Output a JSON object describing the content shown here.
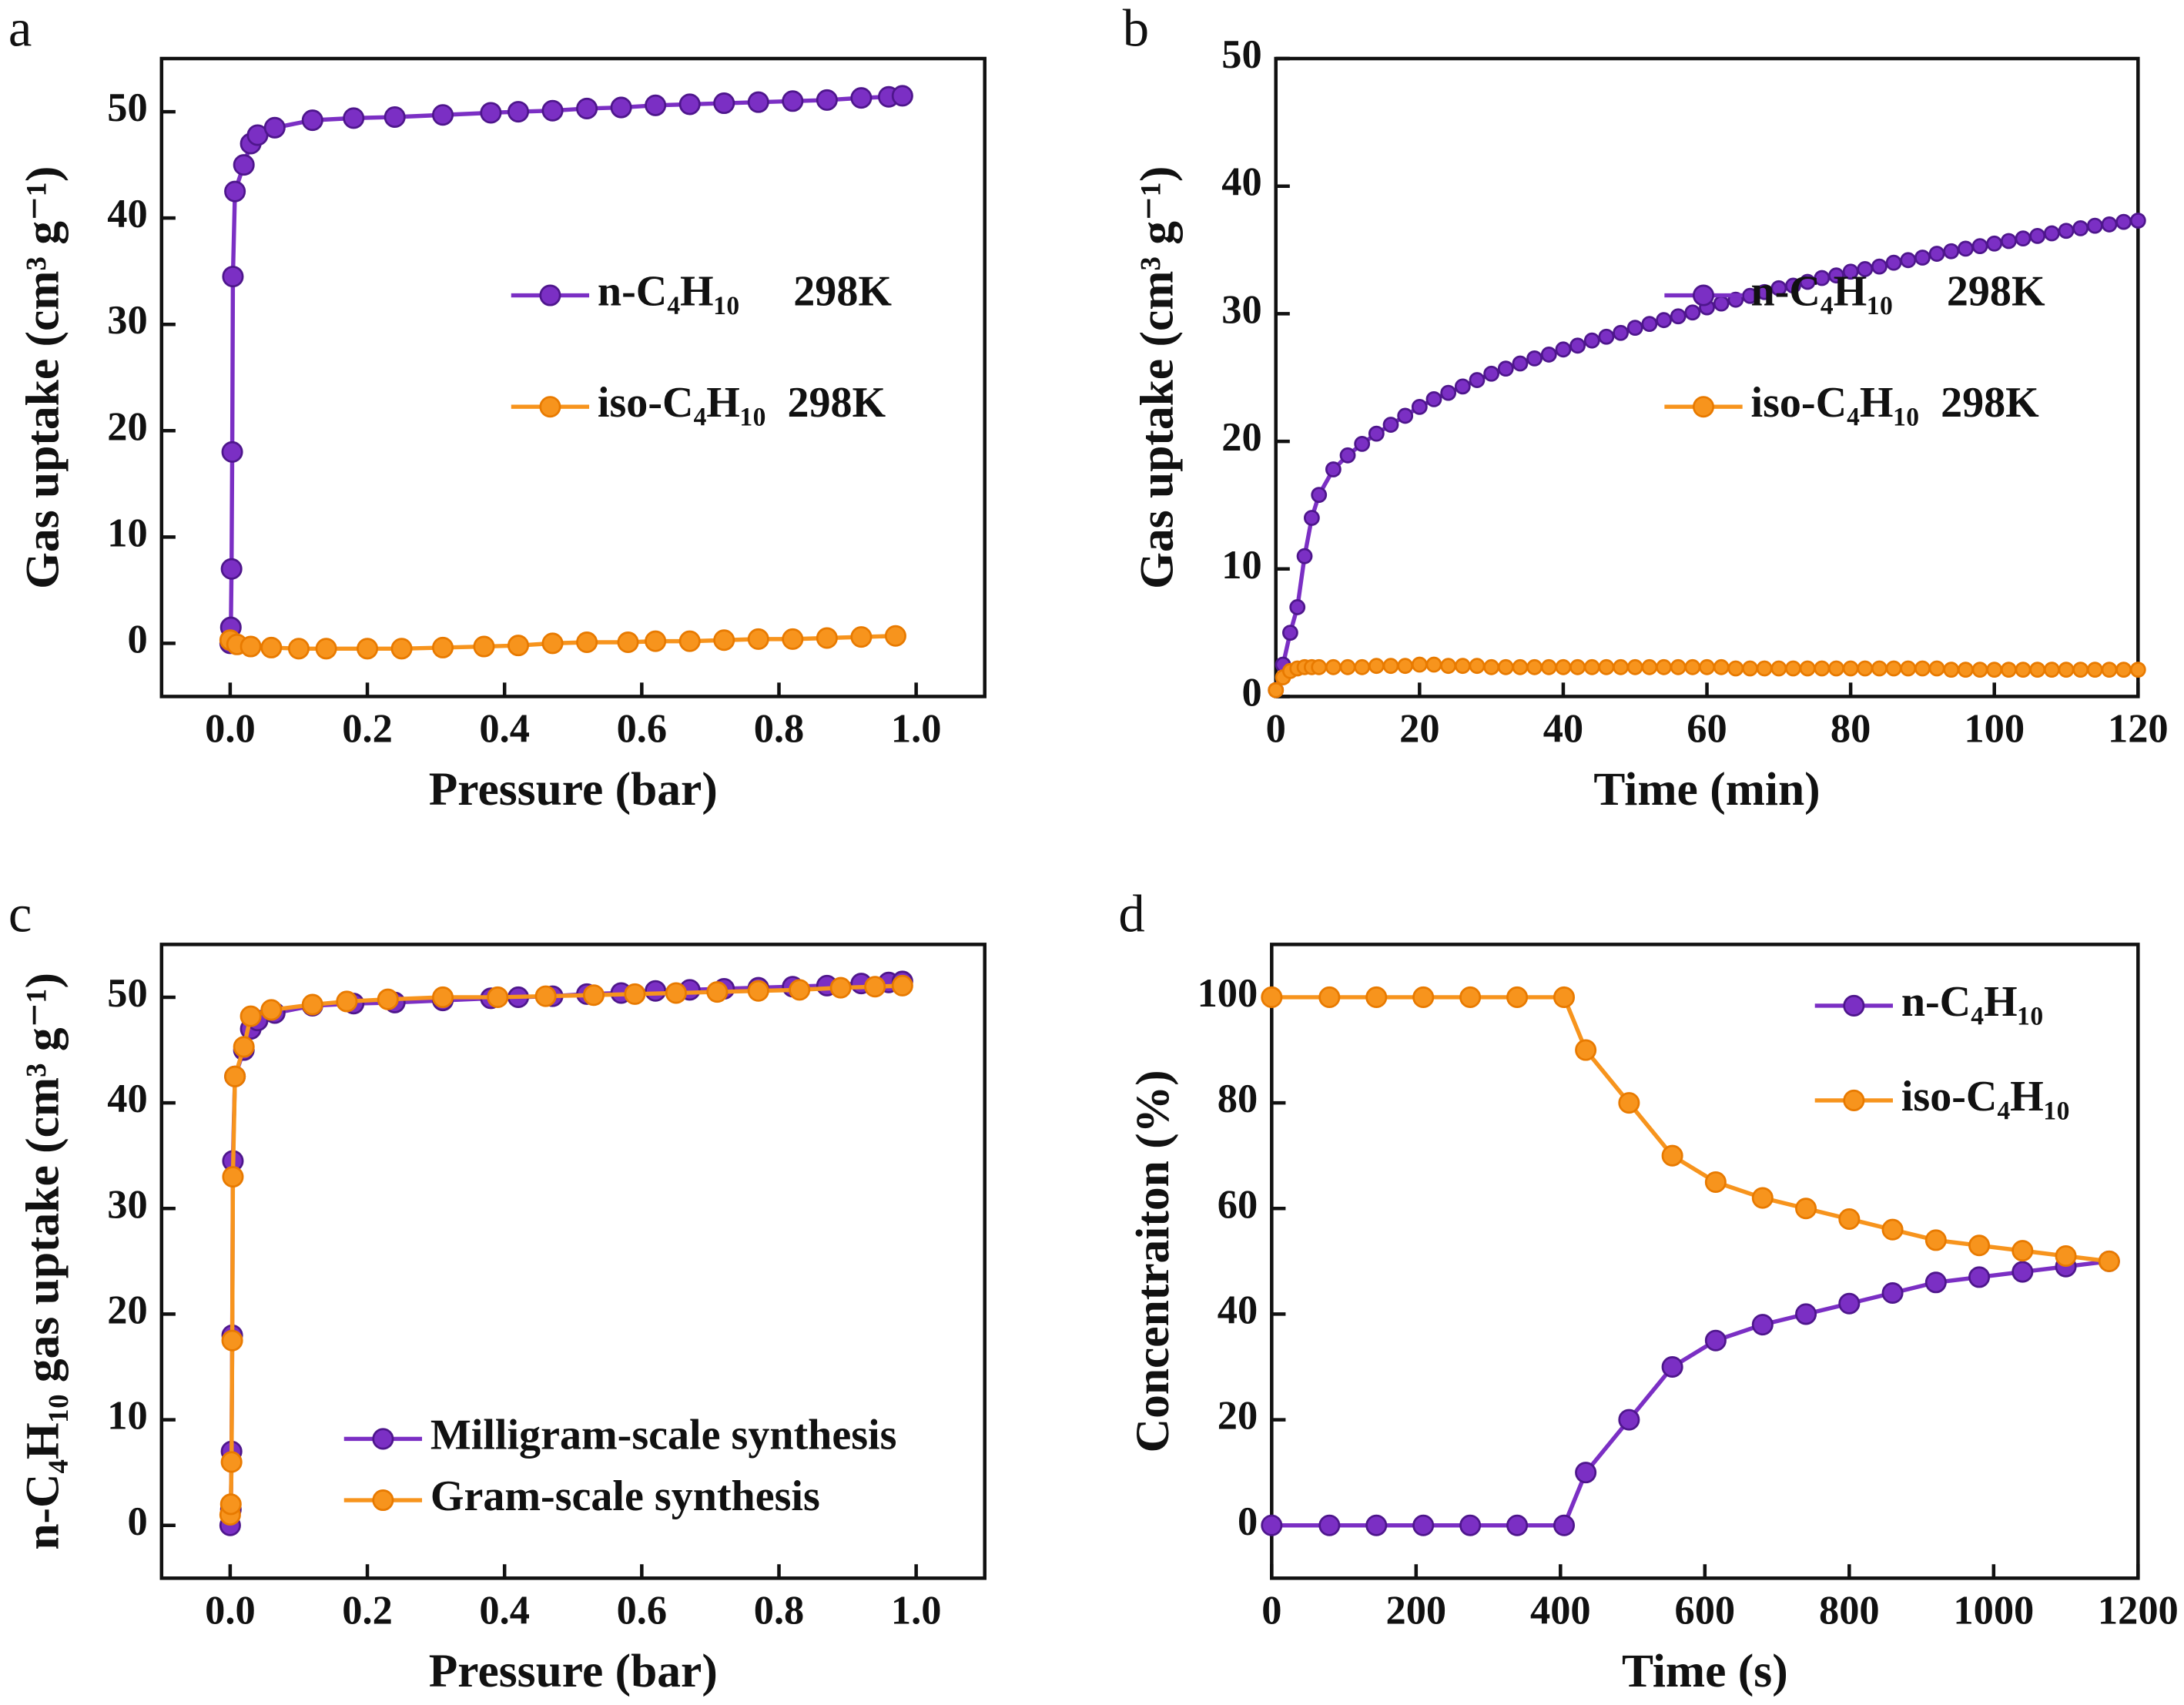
{
  "chart_data": [
    {
      "type": "line",
      "panel": "a",
      "xlabel": "Pressure (bar)",
      "ylabel": "Gas uptake (cm³ g⁻¹)",
      "xlim": [
        -0.1,
        1.1
      ],
      "ylim": [
        -5,
        55
      ],
      "xticks": [
        {
          "value": 0,
          "label": "0.0"
        },
        0.2,
        0.4,
        0.6,
        0.8,
        {
          "value": 1,
          "label": "1.0"
        }
      ],
      "yticks": [
        0,
        10,
        20,
        30,
        40,
        50
      ],
      "legend": "center right",
      "series": [
        {
          "name": "n-C₄H₁₀     298K",
          "color": "#7b2fc4",
          "x": [
            0,
            0.001,
            0.002,
            0.003,
            0.004,
            0.007,
            0.02,
            0.03,
            0.04,
            0.065,
            0.12,
            0.18,
            0.24,
            0.31,
            0.38,
            0.42,
            0.47,
            0.52,
            0.57,
            0.62,
            0.67,
            0.72,
            0.77,
            0.82,
            0.87,
            0.92,
            0.96,
            0.98
          ],
          "values": [
            0,
            1.5,
            7,
            18,
            34.5,
            42.5,
            45,
            47,
            47.8,
            48.5,
            49.2,
            49.4,
            49.5,
            49.7,
            49.9,
            50,
            50.1,
            50.3,
            50.4,
            50.6,
            50.7,
            50.8,
            50.9,
            51,
            51.1,
            51.3,
            51.4,
            51.5
          ]
        },
        {
          "name": "iso-C₄H₁₀  298K",
          "color": "#f7941d",
          "x": [
            0,
            0.01,
            0.03,
            0.06,
            0.1,
            0.14,
            0.2,
            0.25,
            0.31,
            0.37,
            0.42,
            0.47,
            0.52,
            0.58,
            0.62,
            0.67,
            0.72,
            0.77,
            0.82,
            0.87,
            0.92,
            0.97
          ],
          "values": [
            0.3,
            -0.1,
            -0.3,
            -0.4,
            -0.5,
            -0.5,
            -0.5,
            -0.5,
            -0.4,
            -0.3,
            -0.2,
            0,
            0.1,
            0.1,
            0.2,
            0.2,
            0.3,
            0.4,
            0.4,
            0.5,
            0.6,
            0.7
          ]
        }
      ]
    },
    {
      "type": "line",
      "panel": "b",
      "xlabel": "Time (min)",
      "ylabel": "Gas uptake (cm³ g⁻¹)",
      "xlim": [
        0,
        120
      ],
      "ylim": [
        0,
        50
      ],
      "xticks": [
        0,
        20,
        40,
        60,
        80,
        100,
        120
      ],
      "yticks": [
        0,
        10,
        20,
        30,
        40,
        50
      ],
      "legend": "center right",
      "series": [
        {
          "name": "n-C₄H₁₀     298K",
          "color": "#7b2fc4",
          "x": [
            0,
            1,
            2,
            3,
            4,
            5,
            6,
            8,
            10,
            12,
            14,
            16,
            18,
            20,
            22,
            24,
            26,
            28,
            30,
            32,
            34,
            36,
            38,
            40,
            42,
            44,
            46,
            48,
            50,
            52,
            54,
            56,
            58,
            60,
            62,
            64,
            66,
            68,
            70,
            72,
            74,
            76,
            78,
            80,
            82,
            84,
            86,
            88,
            90,
            92,
            94,
            96,
            98,
            100,
            102,
            104,
            106,
            108,
            110,
            112,
            114,
            116,
            118,
            120
          ],
          "values": [
            0.5,
            2.5,
            5,
            7,
            11,
            14,
            15.8,
            17.8,
            18.9,
            19.8,
            20.6,
            21.3,
            22,
            22.7,
            23.3,
            23.8,
            24.3,
            24.8,
            25.3,
            25.7,
            26.1,
            26.5,
            26.8,
            27.2,
            27.5,
            27.9,
            28.2,
            28.5,
            28.9,
            29.2,
            29.5,
            29.8,
            30.1,
            30.5,
            30.8,
            31.1,
            31.4,
            31.7,
            32,
            32.2,
            32.5,
            32.8,
            33,
            33.3,
            33.5,
            33.7,
            34,
            34.2,
            34.4,
            34.7,
            34.9,
            35.1,
            35.3,
            35.5,
            35.7,
            35.9,
            36.1,
            36.3,
            36.5,
            36.7,
            36.9,
            37,
            37.2,
            37.3
          ]
        },
        {
          "name": "iso-C₄H₁₀  298K",
          "color": "#f7941d",
          "x": [
            0,
            1,
            2,
            3,
            4,
            5,
            6,
            8,
            10,
            12,
            14,
            16,
            18,
            20,
            22,
            24,
            26,
            28,
            30,
            32,
            34,
            36,
            38,
            40,
            42,
            44,
            46,
            48,
            50,
            52,
            54,
            56,
            58,
            60,
            62,
            64,
            66,
            68,
            70,
            72,
            74,
            76,
            78,
            80,
            82,
            84,
            86,
            88,
            90,
            92,
            94,
            96,
            98,
            100,
            102,
            104,
            106,
            108,
            110,
            112,
            114,
            116,
            118,
            120
          ],
          "values": [
            0.5,
            1.5,
            2,
            2.2,
            2.3,
            2.3,
            2.3,
            2.3,
            2.3,
            2.3,
            2.4,
            2.4,
            2.4,
            2.5,
            2.5,
            2.4,
            2.4,
            2.4,
            2.3,
            2.3,
            2.3,
            2.3,
            2.3,
            2.3,
            2.3,
            2.3,
            2.3,
            2.3,
            2.3,
            2.3,
            2.3,
            2.3,
            2.3,
            2.3,
            2.3,
            2.2,
            2.2,
            2.2,
            2.2,
            2.2,
            2.2,
            2.2,
            2.2,
            2.2,
            2.2,
            2.2,
            2.2,
            2.2,
            2.2,
            2.2,
            2.1,
            2.1,
            2.1,
            2.1,
            2.1,
            2.1,
            2.1,
            2.1,
            2.1,
            2.1,
            2.1,
            2.1,
            2.1,
            2.1
          ]
        }
      ]
    },
    {
      "type": "line",
      "panel": "c",
      "xlabel": "Pressure (bar)",
      "ylabel": "n-C₄H₁₀ gas uptake (cm³ g⁻¹)",
      "xlim": [
        -0.1,
        1.1
      ],
      "ylim": [
        -5,
        55
      ],
      "xticks": [
        {
          "value": 0,
          "label": "0.0"
        },
        0.2,
        0.4,
        0.6,
        0.8,
        {
          "value": 1,
          "label": "1.0"
        }
      ],
      "yticks": [
        0,
        10,
        20,
        30,
        40,
        50
      ],
      "legend": "lower right",
      "series": [
        {
          "name": "Milligram-scale synthesis",
          "color": "#7b2fc4",
          "x": [
            0,
            0.001,
            0.002,
            0.003,
            0.004,
            0.007,
            0.02,
            0.03,
            0.04,
            0.065,
            0.12,
            0.18,
            0.24,
            0.31,
            0.38,
            0.42,
            0.47,
            0.52,
            0.57,
            0.62,
            0.67,
            0.72,
            0.77,
            0.82,
            0.87,
            0.92,
            0.96,
            0.98
          ],
          "values": [
            0,
            1.5,
            7,
            18,
            34.5,
            42.5,
            45,
            47,
            47.8,
            48.5,
            49.2,
            49.4,
            49.5,
            49.7,
            49.9,
            50,
            50.1,
            50.3,
            50.4,
            50.6,
            50.7,
            50.8,
            50.9,
            51,
            51.1,
            51.3,
            51.4,
            51.5
          ]
        },
        {
          "name": "Gram-scale synthesis",
          "color": "#f7941d",
          "x": [
            0,
            0.001,
            0.002,
            0.003,
            0.004,
            0.007,
            0.02,
            0.03,
            0.06,
            0.12,
            0.17,
            0.23,
            0.31,
            0.39,
            0.46,
            0.53,
            0.59,
            0.65,
            0.71,
            0.77,
            0.83,
            0.89,
            0.94,
            0.98
          ],
          "values": [
            1,
            2,
            6,
            17.5,
            33,
            42.5,
            45.3,
            48.2,
            48.8,
            49.3,
            49.6,
            49.8,
            50,
            50,
            50.1,
            50.2,
            50.3,
            50.4,
            50.5,
            50.6,
            50.7,
            50.9,
            51,
            51.1
          ]
        }
      ]
    },
    {
      "type": "line",
      "panel": "d",
      "xlabel": "Time (s)",
      "ylabel": "Concentraiton (%)",
      "xlim": [
        0,
        1200
      ],
      "ylim": [
        -10,
        110
      ],
      "xticks": [
        0,
        200,
        400,
        600,
        800,
        1000,
        1200
      ],
      "yticks": [
        0,
        20,
        40,
        60,
        80,
        100
      ],
      "legend": "upper right",
      "series": [
        {
          "name": "n-C₄H₁₀",
          "color": "#7b2fc4",
          "x": [
            0,
            80,
            145,
            210,
            275,
            340,
            405,
            435,
            495,
            555,
            615,
            680,
            740,
            800,
            860,
            920,
            980,
            1040,
            1100,
            1160
          ],
          "values": [
            0,
            0,
            0,
            0,
            0,
            0,
            0,
            10,
            20,
            30,
            35,
            38,
            40,
            42,
            44,
            46,
            47,
            48,
            49,
            50
          ]
        },
        {
          "name": "iso-C₄H₁₀",
          "color": "#f7941d",
          "x": [
            0,
            80,
            145,
            210,
            275,
            340,
            405,
            435,
            495,
            555,
            615,
            680,
            740,
            800,
            860,
            920,
            980,
            1040,
            1100,
            1160
          ],
          "values": [
            100,
            100,
            100,
            100,
            100,
            100,
            100,
            90,
            80,
            70,
            65,
            62,
            60,
            58,
            56,
            54,
            53,
            52,
            51,
            50
          ]
        }
      ]
    }
  ]
}
